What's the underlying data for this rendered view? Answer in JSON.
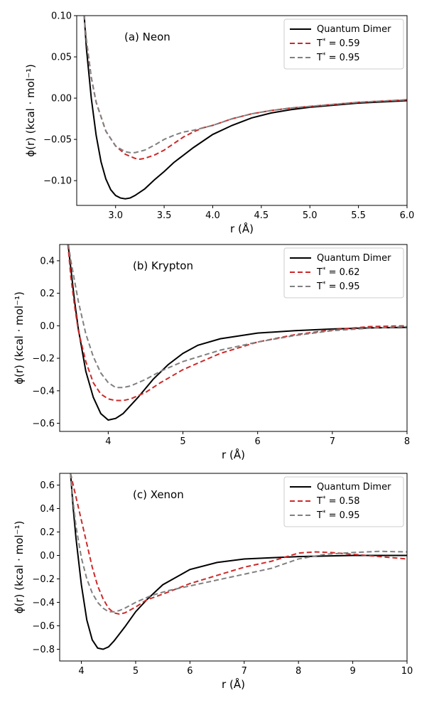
{
  "chart_data": [
    {
      "type": "line",
      "panel_label": "(a) Neon",
      "xlabel": "r (Å)",
      "ylabel": "ϕ(r) (kcal · mol⁻¹)",
      "xlim": [
        2.6,
        6.0
      ],
      "ylim": [
        -0.13,
        0.1
      ],
      "xticks": [
        3.0,
        3.5,
        4.0,
        4.5,
        5.0,
        5.5,
        6.0
      ],
      "xtick_labels": [
        "3.0",
        "3.5",
        "4.0",
        "4.5",
        "5.0",
        "5.5",
        "6.0"
      ],
      "yticks": [
        -0.1,
        -0.05,
        0.0,
        0.05,
        0.1
      ],
      "ytick_labels": [
        "−0.10",
        "−0.05",
        "0.00",
        "0.05",
        "0.10"
      ],
      "legend_position": "top-right",
      "series": [
        {
          "name": "Quantum Dimer",
          "temp": "",
          "color": "#000000",
          "dash": "solid",
          "x": [
            2.66,
            2.7,
            2.75,
            2.8,
            2.85,
            2.9,
            2.95,
            3.0,
            3.05,
            3.1,
            3.15,
            3.2,
            3.3,
            3.4,
            3.5,
            3.6,
            3.8,
            4.0,
            4.2,
            4.4,
            4.6,
            4.8,
            5.0,
            5.5,
            6.0
          ],
          "y": [
            0.13,
            0.06,
            0.0,
            -0.045,
            -0.077,
            -0.098,
            -0.111,
            -0.118,
            -0.121,
            -0.122,
            -0.121,
            -0.118,
            -0.11,
            -0.099,
            -0.089,
            -0.078,
            -0.06,
            -0.044,
            -0.033,
            -0.024,
            -0.018,
            -0.014,
            -0.011,
            -0.006,
            -0.003
          ]
        },
        {
          "name": "T* = 0.59",
          "temp": "0.59",
          "color": "#cc2929",
          "dash": "7,4",
          "x": [
            2.66,
            2.7,
            2.75,
            2.8,
            2.9,
            3.0,
            3.1,
            3.2,
            3.25,
            3.3,
            3.4,
            3.5,
            3.6,
            3.7,
            3.8,
            3.9,
            4.0,
            4.2,
            4.4,
            4.6,
            4.8,
            5.0,
            5.5,
            6.0
          ],
          "y": [
            0.12,
            0.07,
            0.025,
            -0.005,
            -0.04,
            -0.058,
            -0.068,
            -0.073,
            -0.074,
            -0.073,
            -0.069,
            -0.063,
            -0.055,
            -0.047,
            -0.041,
            -0.036,
            -0.033,
            -0.025,
            -0.019,
            -0.015,
            -0.012,
            -0.01,
            -0.005,
            -0.002
          ]
        },
        {
          "name": "T* = 0.95",
          "temp": "0.95",
          "color": "#808080",
          "dash": "7,4",
          "x": [
            2.66,
            2.7,
            2.75,
            2.8,
            2.9,
            3.0,
            3.1,
            3.15,
            3.2,
            3.3,
            3.4,
            3.5,
            3.6,
            3.7,
            3.8,
            3.9,
            4.0,
            4.2,
            4.4,
            4.6,
            4.8,
            5.0,
            5.5,
            6.0
          ],
          "y": [
            0.12,
            0.07,
            0.025,
            -0.005,
            -0.04,
            -0.058,
            -0.065,
            -0.066,
            -0.066,
            -0.063,
            -0.057,
            -0.05,
            -0.045,
            -0.041,
            -0.039,
            -0.036,
            -0.033,
            -0.025,
            -0.019,
            -0.015,
            -0.012,
            -0.01,
            -0.005,
            -0.002
          ]
        }
      ]
    },
    {
      "type": "line",
      "panel_label": "(b) Krypton",
      "xlabel": "r (Å)",
      "ylabel": "ϕ(r) (kcal · mol⁻¹)",
      "xlim": [
        3.35,
        8.0
      ],
      "ylim": [
        -0.65,
        0.5
      ],
      "xticks": [
        4,
        5,
        6,
        7,
        8
      ],
      "xtick_labels": [
        "4",
        "5",
        "6",
        "7",
        "8"
      ],
      "yticks": [
        -0.6,
        -0.4,
        -0.2,
        0.0,
        0.2,
        0.4
      ],
      "ytick_labels": [
        "−0.6",
        "−0.4",
        "−0.2",
        "0.0",
        "0.2",
        "0.4"
      ],
      "legend_position": "top-right",
      "series": [
        {
          "name": "Quantum Dimer",
          "temp": "",
          "color": "#000000",
          "dash": "solid",
          "x": [
            3.45,
            3.5,
            3.55,
            3.6,
            3.65,
            3.7,
            3.8,
            3.9,
            4.0,
            4.1,
            4.2,
            4.4,
            4.6,
            4.8,
            5.0,
            5.2,
            5.5,
            6.0,
            6.5,
            7.0,
            7.5,
            8.0
          ],
          "y": [
            0.55,
            0.35,
            0.15,
            -0.02,
            -0.15,
            -0.28,
            -0.44,
            -0.54,
            -0.58,
            -0.57,
            -0.54,
            -0.44,
            -0.33,
            -0.24,
            -0.17,
            -0.12,
            -0.08,
            -0.045,
            -0.03,
            -0.02,
            -0.013,
            -0.01
          ]
        },
        {
          "name": "T* = 0.62",
          "temp": "0.62",
          "color": "#cc2929",
          "dash": "7,4",
          "x": [
            3.45,
            3.5,
            3.55,
            3.6,
            3.7,
            3.8,
            3.9,
            4.0,
            4.1,
            4.2,
            4.3,
            4.5,
            4.7,
            5.0,
            5.5,
            6.0,
            6.5,
            7.0,
            7.5,
            8.0
          ],
          "y": [
            0.55,
            0.3,
            0.12,
            -0.03,
            -0.22,
            -0.35,
            -0.42,
            -0.45,
            -0.46,
            -0.46,
            -0.45,
            -0.41,
            -0.35,
            -0.27,
            -0.17,
            -0.1,
            -0.055,
            -0.025,
            -0.005,
            0.0
          ]
        },
        {
          "name": "T* = 0.95",
          "temp": "0.95",
          "color": "#808080",
          "dash": "7,4",
          "x": [
            3.45,
            3.5,
            3.6,
            3.7,
            3.8,
            3.9,
            4.0,
            4.1,
            4.2,
            4.3,
            4.5,
            4.7,
            5.0,
            5.5,
            6.0,
            6.5,
            7.0,
            7.5,
            8.0
          ],
          "y": [
            0.55,
            0.4,
            0.15,
            -0.05,
            -0.19,
            -0.29,
            -0.35,
            -0.38,
            -0.38,
            -0.37,
            -0.33,
            -0.28,
            -0.22,
            -0.15,
            -0.1,
            -0.06,
            -0.03,
            -0.015,
            -0.005
          ]
        }
      ]
    },
    {
      "type": "line",
      "panel_label": "(c) Xenon",
      "xlabel": "r (Å)",
      "ylabel": "ϕ(r) (kcal · mol⁻¹)",
      "xlim": [
        3.6,
        10.0
      ],
      "ylim": [
        -0.9,
        0.7
      ],
      "xticks": [
        4,
        5,
        6,
        7,
        8,
        9,
        10
      ],
      "xtick_labels": [
        "4",
        "5",
        "6",
        "7",
        "8",
        "9",
        "10"
      ],
      "yticks": [
        -0.8,
        -0.6,
        -0.4,
        -0.2,
        0.0,
        0.2,
        0.4,
        0.6
      ],
      "ytick_labels": [
        "−0.8",
        "−0.6",
        "−0.4",
        "−0.2",
        "0.0",
        "0.2",
        "0.4",
        "0.6"
      ],
      "legend_position": "top-right",
      "series": [
        {
          "name": "Quantum Dimer",
          "temp": "",
          "color": "#000000",
          "dash": "solid",
          "x": [
            3.8,
            3.85,
            3.9,
            4.0,
            4.1,
            4.2,
            4.3,
            4.4,
            4.5,
            4.6,
            4.8,
            5.0,
            5.2,
            5.5,
            6.0,
            6.5,
            7.0,
            7.5,
            8.0,
            9.0,
            10.0
          ],
          "y": [
            0.7,
            0.4,
            0.15,
            -0.25,
            -0.55,
            -0.72,
            -0.79,
            -0.8,
            -0.78,
            -0.73,
            -0.61,
            -0.48,
            -0.38,
            -0.25,
            -0.12,
            -0.06,
            -0.03,
            -0.02,
            -0.01,
            0.0,
            0.0
          ]
        },
        {
          "name": "T* = 0.58",
          "temp": "0.58",
          "color": "#cc2929",
          "dash": "7,4",
          "x": [
            3.8,
            3.9,
            4.0,
            4.1,
            4.2,
            4.3,
            4.4,
            4.5,
            4.6,
            4.7,
            4.8,
            5.0,
            5.2,
            5.5,
            6.0,
            6.5,
            7.0,
            7.5,
            8.0,
            8.3,
            8.6,
            9.0,
            9.5,
            10.0
          ],
          "y": [
            0.7,
            0.5,
            0.3,
            0.1,
            -0.1,
            -0.26,
            -0.37,
            -0.45,
            -0.49,
            -0.5,
            -0.49,
            -0.44,
            -0.38,
            -0.33,
            -0.24,
            -0.17,
            -0.1,
            -0.05,
            0.02,
            0.03,
            0.025,
            0.01,
            -0.01,
            -0.03
          ]
        },
        {
          "name": "T* = 0.95",
          "temp": "0.95",
          "color": "#808080",
          "dash": "7,4",
          "x": [
            3.8,
            3.85,
            3.9,
            4.0,
            4.1,
            4.2,
            4.3,
            4.4,
            4.5,
            4.6,
            4.7,
            4.8,
            5.0,
            5.3,
            5.6,
            6.0,
            6.5,
            7.0,
            7.5,
            8.0,
            8.5,
            9.0,
            9.5,
            10.0
          ],
          "y": [
            0.7,
            0.45,
            0.25,
            -0.02,
            -0.2,
            -0.32,
            -0.4,
            -0.45,
            -0.48,
            -0.48,
            -0.47,
            -0.45,
            -0.4,
            -0.34,
            -0.3,
            -0.26,
            -0.21,
            -0.16,
            -0.11,
            -0.03,
            0.01,
            0.025,
            0.035,
            0.03
          ]
        }
      ]
    }
  ]
}
